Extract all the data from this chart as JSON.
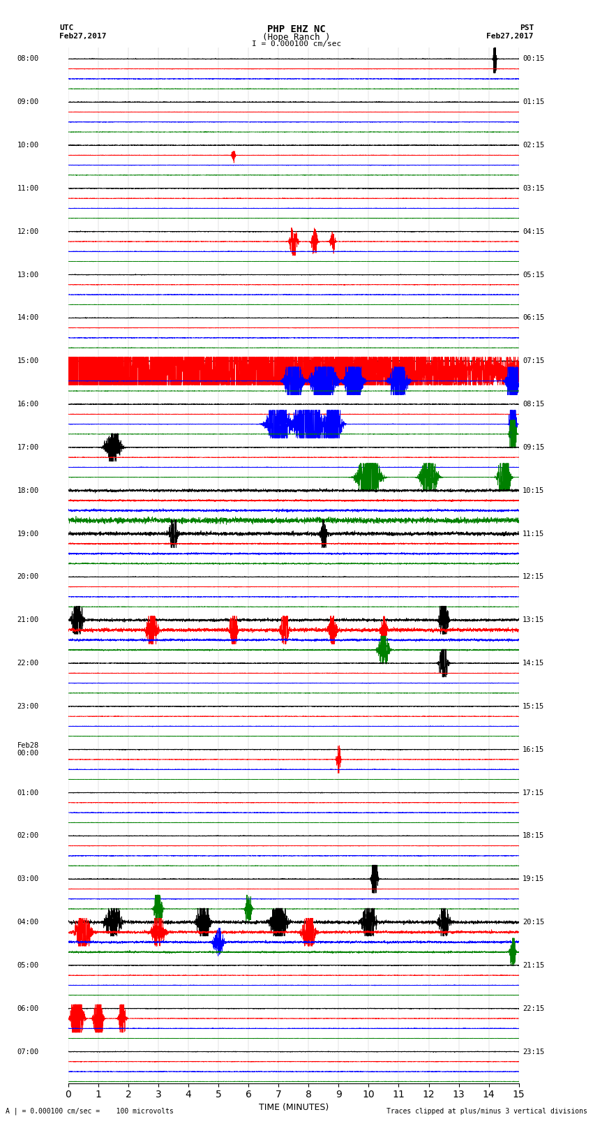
{
  "title_line1": "PHP EHZ NC",
  "title_line2": "(Hope Ranch )",
  "title_scale": "I = 0.000100 cm/sec",
  "utc_label": "UTC",
  "utc_date": "Feb27,2017",
  "pst_label": "PST",
  "pst_date": "Feb27,2017",
  "left_times": [
    "08:00",
    "09:00",
    "10:00",
    "11:00",
    "12:00",
    "13:00",
    "14:00",
    "15:00",
    "16:00",
    "17:00",
    "18:00",
    "19:00",
    "20:00",
    "21:00",
    "22:00",
    "23:00",
    "Feb28\n00:00",
    "01:00",
    "02:00",
    "03:00",
    "04:00",
    "05:00",
    "06:00",
    "07:00"
  ],
  "right_times": [
    "00:15",
    "01:15",
    "02:15",
    "03:15",
    "04:15",
    "05:15",
    "06:15",
    "07:15",
    "08:15",
    "09:15",
    "10:15",
    "11:15",
    "12:15",
    "13:15",
    "14:15",
    "15:15",
    "16:15",
    "17:15",
    "18:15",
    "19:15",
    "20:15",
    "21:15",
    "22:15",
    "23:15"
  ],
  "xlabel": "TIME (MINUTES)",
  "xlim": [
    0,
    15
  ],
  "xticks": [
    0,
    1,
    2,
    3,
    4,
    5,
    6,
    7,
    8,
    9,
    10,
    11,
    12,
    13,
    14,
    15
  ],
  "bottom_label": "A | = 0.000100 cm/sec =    100 microvolts",
  "bottom_right": "Traces clipped at plus/minus 3 vertical divisions",
  "trace_colors": [
    "black",
    "red",
    "blue",
    "green"
  ],
  "n_rows": 24,
  "bg_color": "white"
}
